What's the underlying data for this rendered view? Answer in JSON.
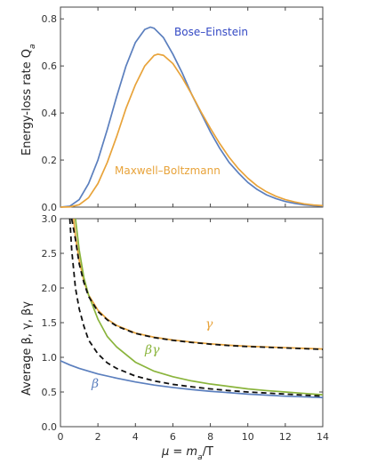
{
  "chart_data": [
    {
      "type": "line",
      "title": "",
      "xlabel": "",
      "ylabel": "Energy-loss rate Q",
      "ylabel_subscript": "a",
      "xlim": [
        0,
        14
      ],
      "ylim": [
        0,
        0.85
      ],
      "yticks": [
        0.0,
        0.2,
        0.4,
        0.6,
        0.8
      ],
      "ytick_labels": [
        "0.0",
        "0.2",
        "0.4",
        "0.6",
        "0.8"
      ],
      "series": [
        {
          "name": "Bose–Einstein",
          "color": "#5b7fbe",
          "x": [
            0,
            0.5,
            1,
            1.5,
            2,
            2.5,
            3,
            3.5,
            4,
            4.5,
            4.8,
            5,
            5.5,
            6,
            6.5,
            7,
            7.5,
            8,
            8.5,
            9,
            9.5,
            10,
            10.5,
            11,
            11.5,
            12,
            12.5,
            13,
            13.5,
            14
          ],
          "y": [
            0,
            0.004,
            0.032,
            0.1,
            0.2,
            0.33,
            0.47,
            0.6,
            0.7,
            0.755,
            0.765,
            0.76,
            0.72,
            0.65,
            0.57,
            0.48,
            0.4,
            0.32,
            0.25,
            0.19,
            0.145,
            0.105,
            0.075,
            0.052,
            0.036,
            0.024,
            0.016,
            0.01,
            0.006,
            0.004
          ]
        },
        {
          "name": "Maxwell–Boltzmann",
          "color": "#e8a33a",
          "x": [
            0,
            0.5,
            1,
            1.5,
            2,
            2.5,
            3,
            3.5,
            4,
            4.5,
            5,
            5.2,
            5.5,
            6,
            6.5,
            7,
            7.5,
            8,
            8.5,
            9,
            9.5,
            10,
            10.5,
            11,
            11.5,
            12,
            12.5,
            13,
            13.5,
            14
          ],
          "y": [
            0,
            0.001,
            0.01,
            0.04,
            0.1,
            0.19,
            0.3,
            0.42,
            0.52,
            0.6,
            0.645,
            0.65,
            0.645,
            0.61,
            0.55,
            0.48,
            0.405,
            0.335,
            0.27,
            0.212,
            0.163,
            0.123,
            0.09,
            0.065,
            0.046,
            0.032,
            0.022,
            0.014,
            0.009,
            0.006
          ]
        }
      ],
      "annotations": [
        "Bose–Einstein",
        "Maxwell–Boltzmann"
      ]
    },
    {
      "type": "line",
      "title": "",
      "xlabel": "μ = m",
      "xlabel_subscript": "a",
      "xlabel_suffix": "/T",
      "ylabel": "Average  β, γ, βγ",
      "xlim": [
        0,
        14
      ],
      "ylim": [
        0,
        3.0
      ],
      "xticks": [
        0,
        2,
        4,
        6,
        8,
        10,
        12,
        14
      ],
      "xtick_labels": [
        "0",
        "2",
        "4",
        "6",
        "8",
        "10",
        "12",
        "14"
      ],
      "yticks": [
        0.0,
        0.5,
        1.0,
        1.5,
        2.0,
        2.5,
        3.0
      ],
      "ytick_labels": [
        "0.0",
        "0.5",
        "1.0",
        "1.5",
        "2.0",
        "2.5",
        "3.0"
      ],
      "series": [
        {
          "name": "β",
          "color": "#5b7fbe",
          "dashed": false,
          "x": [
            0,
            0.5,
            1,
            1.5,
            2,
            3,
            4,
            5,
            6,
            7,
            8,
            9,
            10,
            11,
            12,
            13,
            14
          ],
          "y": [
            0.95,
            0.89,
            0.84,
            0.8,
            0.76,
            0.7,
            0.645,
            0.6,
            0.565,
            0.535,
            0.51,
            0.49,
            0.47,
            0.455,
            0.44,
            0.43,
            0.42
          ]
        },
        {
          "name": "γ",
          "color": "#e8a33a",
          "dashed": false,
          "x": [
            0.7,
            0.8,
            1,
            1.25,
            1.5,
            2,
            2.5,
            3,
            4,
            5,
            6,
            7,
            8,
            9,
            10,
            11,
            12,
            13,
            14
          ],
          "y": [
            3.0,
            2.75,
            2.4,
            2.1,
            1.9,
            1.68,
            1.55,
            1.46,
            1.35,
            1.29,
            1.25,
            1.22,
            1.195,
            1.175,
            1.16,
            1.15,
            1.14,
            1.13,
            1.12
          ]
        },
        {
          "name": "βγ",
          "color": "#8ab43c",
          "dashed": false,
          "x": [
            0.8,
            1,
            1.25,
            1.5,
            2,
            2.5,
            3,
            4,
            5,
            6,
            7,
            8,
            9,
            10,
            11,
            12,
            13,
            14
          ],
          "y": [
            3.0,
            2.55,
            2.15,
            1.9,
            1.55,
            1.3,
            1.15,
            0.93,
            0.8,
            0.72,
            0.66,
            0.615,
            0.58,
            0.545,
            0.52,
            0.5,
            0.48,
            0.46
          ]
        },
        {
          "name": "",
          "color": "#111111",
          "dashed": true,
          "x": [
            0.5,
            0.6,
            0.8,
            1,
            1.25,
            1.5,
            2,
            2.5,
            3,
            4,
            5,
            6,
            7,
            8,
            9,
            10,
            11,
            12,
            13,
            14
          ],
          "y": [
            3.0,
            2.55,
            2.0,
            1.7,
            1.45,
            1.25,
            1.05,
            0.92,
            0.84,
            0.73,
            0.66,
            0.61,
            0.575,
            0.545,
            0.52,
            0.5,
            0.485,
            0.47,
            0.455,
            0.44
          ]
        },
        {
          "name": "",
          "color": "#111111",
          "dashed": true,
          "x": [
            0.6,
            0.8,
            1,
            1.25,
            1.5,
            2,
            2.5,
            3,
            4,
            5,
            6,
            7,
            8,
            9,
            10,
            11,
            12,
            13,
            14
          ],
          "y": [
            3.0,
            2.7,
            2.35,
            2.08,
            1.88,
            1.66,
            1.54,
            1.45,
            1.345,
            1.285,
            1.245,
            1.215,
            1.19,
            1.17,
            1.155,
            1.145,
            1.135,
            1.125,
            1.115
          ]
        }
      ],
      "annotations": [
        "γ",
        "βγ",
        "β"
      ]
    }
  ]
}
